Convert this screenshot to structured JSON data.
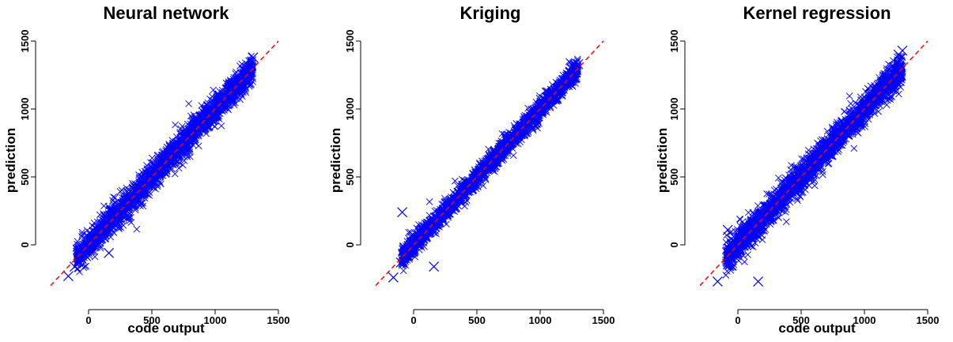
{
  "chart_data": [
    {
      "type": "scatter",
      "title": "Neural network",
      "xlabel": "code output",
      "ylabel": "prediction",
      "xlim": [
        -300,
        1500
      ],
      "ylim": [
        -300,
        1500
      ],
      "x_ticks": [
        "0",
        "500",
        "1000",
        "1500"
      ],
      "y_ticks": [
        "0",
        "500",
        "1000",
        "1500"
      ],
      "marker": "x",
      "marker_color": "#0000ff",
      "reference_line": {
        "style": "dashed",
        "color": "#ff0000",
        "slope": 1,
        "intercept": 0
      },
      "bulk_points": {
        "x_range": [
          -100,
          1300
        ],
        "spread": 60
      },
      "outliers": [
        {
          "x": -160,
          "y": -230
        },
        {
          "x": -110,
          "y": -160
        },
        {
          "x": -80,
          "y": -120
        },
        {
          "x": 160,
          "y": -60
        },
        {
          "x": 1300,
          "y": 1380
        }
      ]
    },
    {
      "type": "scatter",
      "title": "Kriging",
      "xlabel": "",
      "ylabel": "prediction",
      "xlim": [
        -300,
        1500
      ],
      "ylim": [
        -300,
        1500
      ],
      "x_ticks": [
        "0",
        "500",
        "1000",
        "1500"
      ],
      "y_ticks": [
        "0",
        "500",
        "1000",
        "1500"
      ],
      "marker": "x",
      "marker_color": "#0000ff",
      "reference_line": {
        "style": "dashed",
        "color": "#ff0000",
        "slope": 1,
        "intercept": 0
      },
      "bulk_points": {
        "x_range": [
          -100,
          1300
        ],
        "spread": 45
      },
      "outliers": [
        {
          "x": -160,
          "y": -240
        },
        {
          "x": -90,
          "y": 240
        },
        {
          "x": 160,
          "y": -160
        },
        {
          "x": -100,
          "y": -130
        },
        {
          "x": 1300,
          "y": 1330
        }
      ]
    },
    {
      "type": "scatter",
      "title": "Kernel regression",
      "xlabel": "code output",
      "ylabel": "prediction",
      "xlim": [
        -300,
        1500
      ],
      "ylim": [
        -300,
        1500
      ],
      "x_ticks": [
        "0",
        "500",
        "1000",
        "1500"
      ],
      "y_ticks": [
        "0",
        "500",
        "1000",
        "1500"
      ],
      "marker": "x",
      "marker_color": "#0000ff",
      "reference_line": {
        "style": "dashed",
        "color": "#ff0000",
        "slope": 1,
        "intercept": 0
      },
      "bulk_points": {
        "x_range": [
          -100,
          1300
        ],
        "spread": 65
      },
      "outliers": [
        {
          "x": -160,
          "y": -270
        },
        {
          "x": 160,
          "y": -270
        },
        {
          "x": -80,
          "y": 110
        },
        {
          "x": 1300,
          "y": 1430
        },
        {
          "x": 1270,
          "y": 1400
        }
      ]
    }
  ]
}
